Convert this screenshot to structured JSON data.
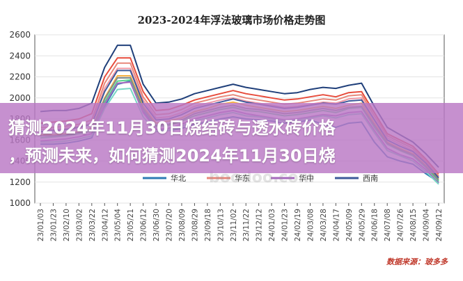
{
  "chart_data": {
    "type": "line",
    "title": "2023-2024年浮法玻璃市场价格走势图",
    "ylim": [
      1000,
      2600
    ],
    "yticks": [
      1000,
      1200,
      1400,
      1600,
      1800,
      2000,
      2200,
      2400,
      2600
    ],
    "x": [
      "23/01/03",
      "23/01/23",
      "23/02/10",
      "23/03/02",
      "23/03/22",
      "23/04/12",
      "23/05/04",
      "23/05/21",
      "23/06/12",
      "23/06/30",
      "23/07/20",
      "23/08/09",
      "23/08/29",
      "23/09/18",
      "23/10/13",
      "23/11/02",
      "23/11/22",
      "23/12/12",
      "24/01/03",
      "24/01/23",
      "24/02/19",
      "24/03/08",
      "24/03/28",
      "24/04/17",
      "24/05/09",
      "24/05/29",
      "24/06/18",
      "24/07/08",
      "24/07/26",
      "24/08/15",
      "24/09/04",
      "24/09/12"
    ],
    "series": [
      {
        "name": "华北",
        "color": "#2e7bb5",
        "values": [
          1560,
          1560,
          1570,
          1590,
          1620,
          1920,
          2130,
          2160,
          1880,
          1700,
          1690,
          1710,
          1750,
          1770,
          1800,
          1820,
          1800,
          1790,
          1780,
          1760,
          1770,
          1790,
          1750,
          1720,
          1760,
          1770,
          1580,
          1440,
          1400,
          1370,
          1280,
          1200
        ]
      },
      {
        "name": "",
        "color": "#1f3f7a",
        "values": [
          1870,
          1880,
          1880,
          1900,
          1950,
          2290,
          2500,
          2500,
          2130,
          1950,
          1960,
          1990,
          2040,
          2070,
          2100,
          2130,
          2100,
          2080,
          2060,
          2040,
          2050,
          2080,
          2100,
          2090,
          2120,
          2140,
          1920,
          1720,
          1650,
          1580,
          1470,
          1340
        ]
      },
      {
        "name": "",
        "color": "#e74c3c",
        "values": [
          1760,
          1770,
          1780,
          1800,
          1850,
          2200,
          2380,
          2380,
          2060,
          1880,
          1890,
          1930,
          1980,
          2010,
          2040,
          2070,
          2040,
          2020,
          2000,
          1980,
          1990,
          2010,
          2030,
          2010,
          2050,
          2060,
          1860,
          1660,
          1600,
          1540,
          1420,
          1280
        ]
      },
      {
        "name": "",
        "color": "#f09aa6",
        "values": [
          1700,
          1700,
          1710,
          1730,
          1760,
          2090,
          2280,
          2280,
          1980,
          1810,
          1820,
          1860,
          1920,
          1950,
          1980,
          2000,
          1970,
          1950,
          1930,
          1910,
          1920,
          1940,
          1960,
          1950,
          1990,
          2000,
          1800,
          1620,
          1560,
          1500,
          1390,
          1250
        ]
      },
      {
        "name": "",
        "color": "#f5b041",
        "values": [
          1650,
          1650,
          1660,
          1680,
          1710,
          2000,
          2210,
          2210,
          1920,
          1760,
          1780,
          1810,
          1870,
          1900,
          1940,
          1960,
          1930,
          1910,
          1890,
          1870,
          1880,
          1900,
          1920,
          1900,
          1930,
          1950,
          1760,
          1580,
          1520,
          1470,
          1360,
          1230
        ]
      },
      {
        "name": "",
        "color": "#58d68d",
        "values": [
          1620,
          1630,
          1640,
          1660,
          1690,
          1960,
          2160,
          2170,
          1890,
          1730,
          1740,
          1780,
          1830,
          1860,
          1890,
          1910,
          1880,
          1870,
          1850,
          1830,
          1840,
          1860,
          1880,
          1860,
          1900,
          1910,
          1720,
          1560,
          1500,
          1450,
          1340,
          1210
        ]
      },
      {
        "name": "华东",
        "color": "#e8877a",
        "values": [
          1720,
          1720,
          1730,
          1750,
          1790,
          2140,
          2330,
          2330,
          2010,
          1840,
          1850,
          1890,
          1950,
          1980,
          2010,
          2030,
          2000,
          1980,
          1960,
          1940,
          1950,
          1970,
          1990,
          1980,
          2020,
          2030,
          1830,
          1640,
          1580,
          1520,
          1400,
          1260
        ]
      },
      {
        "name": "华中",
        "color": "#a569bd",
        "values": [
          1590,
          1600,
          1610,
          1630,
          1660,
          1940,
          2140,
          2150,
          1860,
          1700,
          1710,
          1750,
          1800,
          1830,
          1860,
          1880,
          1850,
          1830,
          1810,
          1790,
          1800,
          1820,
          1840,
          1830,
          1860,
          1870,
          1690,
          1520,
          1460,
          1420,
          1320,
          1190
        ]
      },
      {
        "name": "西南",
        "color": "#3c5a9a",
        "values": [
          1680,
          1690,
          1700,
          1720,
          1750,
          2060,
          2260,
          2260,
          1950,
          1790,
          1800,
          1840,
          1900,
          1930,
          1960,
          1990,
          1960,
          1940,
          1920,
          1900,
          1910,
          1930,
          1950,
          1940,
          1970,
          1980,
          1790,
          1600,
          1540,
          1490,
          1380,
          1240
        ]
      },
      {
        "name": "",
        "color": "#7f8c8d",
        "values": [
          1640,
          1640,
          1650,
          1670,
          1700,
          1990,
          2190,
          2190,
          1900,
          1740,
          1750,
          1790,
          1850,
          1880,
          1910,
          1930,
          1900,
          1890,
          1870,
          1850,
          1860,
          1880,
          1900,
          1880,
          1910,
          1920,
          1740,
          1570,
          1510,
          1460,
          1350,
          1220
        ]
      },
      {
        "name": "",
        "color": "#76d7c4",
        "values": [
          1580,
          1580,
          1590,
          1610,
          1640,
          1900,
          2080,
          2090,
          1820,
          1680,
          1690,
          1730,
          1780,
          1810,
          1840,
          1860,
          1830,
          1820,
          1800,
          1780,
          1790,
          1810,
          1830,
          1810,
          1840,
          1850,
          1670,
          1500,
          1450,
          1400,
          1300,
          1180
        ]
      }
    ],
    "grid": true,
    "legend_position": "bottom-center"
  },
  "source_note": "数据来源：玻多多",
  "overlay": {
    "line1": "猜测2024年11月30日烧结砖与透水砖价格",
    "line2": "，预测未来，如何猜测2024年11月30日烧"
  },
  "watermark": "boodoo.com"
}
